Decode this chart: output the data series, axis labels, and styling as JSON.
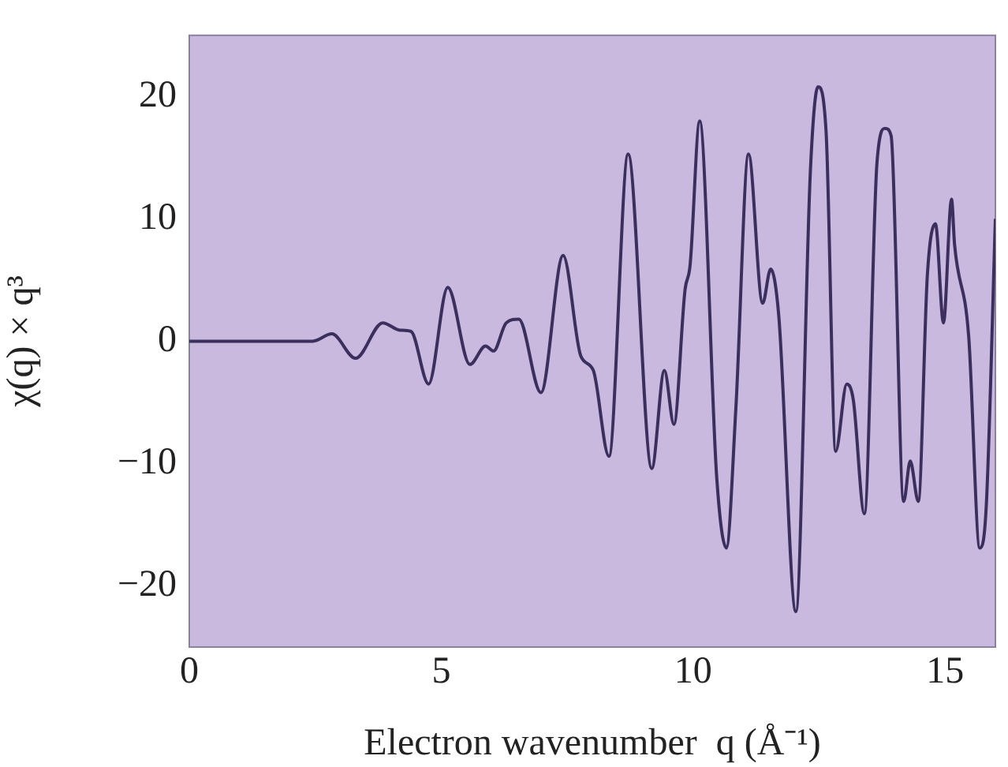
{
  "chart_data": {
    "type": "line",
    "xlabel": "Electron wavenumber  q (Å⁻¹)",
    "ylabel": "χ(q) × q³",
    "xlim": [
      0,
      16
    ],
    "xticks": [
      0,
      5,
      10,
      15
    ],
    "ylim": [
      -25,
      25
    ],
    "yticks": [
      -20,
      -10,
      0,
      10,
      20
    ],
    "grid": false,
    "legend": false,
    "marker": "none",
    "line_style": "solid",
    "series": [
      {
        "color": "#3b2f5e",
        "x": [
          0,
          1,
          2,
          2.45,
          2.83,
          3.3,
          3.84,
          4.18,
          4.4,
          4.75,
          5.13,
          5.57,
          5.88,
          6.04,
          6.29,
          6.54,
          6.98,
          7.42,
          7.77,
          8.02,
          8.33,
          8.71,
          9.18,
          9.43,
          9.62,
          9.84,
          9.94,
          10.13,
          10.47,
          10.66,
          10.85,
          11.1,
          11.38,
          11.54,
          11.7,
          12.04,
          12.33,
          12.48,
          12.64,
          12.83,
          13.05,
          13.18,
          13.4,
          13.65,
          13.81,
          13.93,
          14.18,
          14.31,
          14.47,
          14.65,
          14.81,
          14.97,
          15.13,
          15.19,
          15.47,
          15.69,
          15.82,
          16
        ],
        "values": [
          0,
          0,
          0,
          0,
          0.6,
          -1.4,
          1.5,
          0.9,
          0.8,
          -3.5,
          4.4,
          -1.9,
          -0.4,
          -0.8,
          1.5,
          1.8,
          -4.2,
          7,
          -1.2,
          -2.4,
          -9.4,
          15.3,
          -10.4,
          -2.4,
          -6.8,
          4.2,
          6.2,
          18,
          -11.2,
          -16.9,
          -5.4,
          15.3,
          3.1,
          5.9,
          2.1,
          -22.1,
          14.1,
          20.8,
          17.1,
          -9,
          -3.5,
          -4.8,
          -14.1,
          14.6,
          17.4,
          16.8,
          -13.1,
          -9.8,
          -13.1,
          5.4,
          9.6,
          1.5,
          11.6,
          7.9,
          0.4,
          -16.9,
          -13.4,
          10
        ]
      }
    ]
  }
}
